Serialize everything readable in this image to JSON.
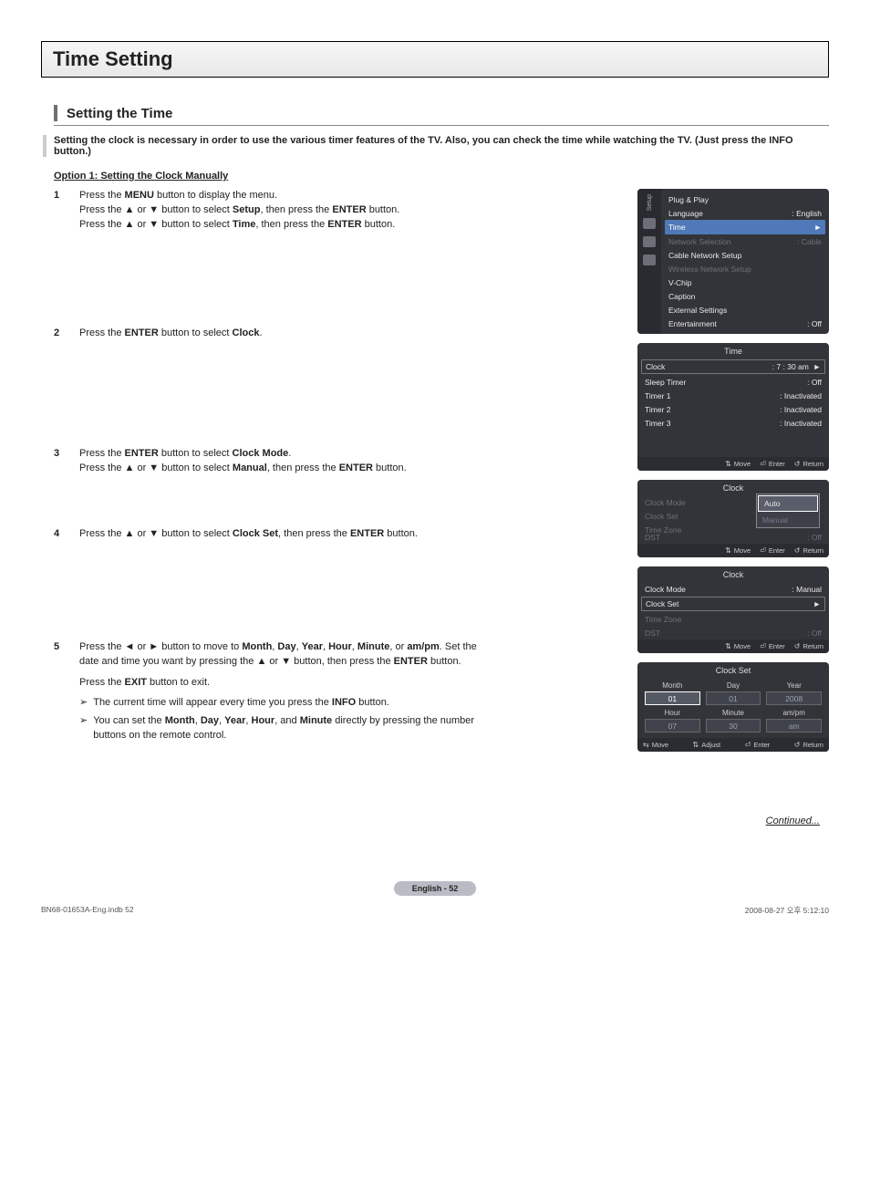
{
  "page": {
    "title": "Time Setting",
    "section_heading": "Setting the Time",
    "intro": "Setting the clock is necessary in order to use the various timer features of the TV. Also, you can check the time while watching the TV. (Just press the INFO button.)",
    "option_title": "Option 1: Setting the Clock Manually",
    "continued": "Continued...",
    "page_badge": "English - 52",
    "footer_left": "BN68-01653A-Eng.indb   52",
    "footer_right": "2008-08-27   오후 5:12:10"
  },
  "steps": {
    "s1": {
      "num": "1",
      "l1a": "Press the ",
      "l1b": "MENU",
      "l1c": " button to display the menu.",
      "l2a": "Press the ▲ or ▼ button to select ",
      "l2b": "Setup",
      "l2c": ", then press the ",
      "l2d": "ENTER",
      "l2e": " button.",
      "l3a": "Press the ▲ or ▼ button to select ",
      "l3b": "Time",
      "l3c": ", then press the ",
      "l3d": "ENTER",
      "l3e": " button."
    },
    "s2": {
      "num": "2",
      "l1a": "Press the ",
      "l1b": "ENTER",
      "l1c": " button to select ",
      "l1d": "Clock",
      "l1e": "."
    },
    "s3": {
      "num": "3",
      "l1a": "Press the ",
      "l1b": "ENTER",
      "l1c": " button to select ",
      "l1d": "Clock Mode",
      "l1e": ".",
      "l2a": "Press the ▲ or ▼ button to select ",
      "l2b": "Manual",
      "l2c": ", then press the ",
      "l2d": "ENTER",
      "l2e": " button."
    },
    "s4": {
      "num": "4",
      "l1a": "Press the ▲ or ▼ button to select ",
      "l1b": "Clock Set",
      "l1c": ", then press the ",
      "l1d": "ENTER",
      "l1e": " button."
    },
    "s5": {
      "num": "5",
      "l1a": "Press the ◄ or ► button to move to ",
      "l1b": "Month",
      "l1c": ", ",
      "l1d": "Day",
      "l1e": ", ",
      "l1f": "Year",
      "l1g": ", ",
      "l1h": "Hour",
      "l1i": ", ",
      "l1j": "Minute",
      "l1k": ", or ",
      "l1l": "am/pm",
      "l1m": ". Set the date and time you want by pressing the ▲ or ▼ button, then press the ",
      "l1n": "ENTER",
      "l1o": " button.",
      "l2a": "Press the ",
      "l2b": "EXIT",
      "l2c": " button to exit.",
      "n1a": "The current time will appear every time you press the ",
      "n1b": "INFO",
      "n1c": " button.",
      "n2a": "You can set the ",
      "n2b": "Month",
      "n2c": ", ",
      "n2d": "Day",
      "n2e": ", ",
      "n2f": "Year",
      "n2g": ", ",
      "n2h": "Hour",
      "n2i": ", and ",
      "n2j": "Minute",
      "n2k": " directly by pressing the number buttons on the remote control."
    }
  },
  "osd": {
    "colors": {
      "panel_bg": "#333439",
      "text": "#e8e8e8",
      "dim": "#6e707a",
      "highlight_bg": "#4f79b8",
      "footer_bg": "#2b2c31"
    },
    "setup": {
      "side_label": "Setup",
      "items": [
        {
          "label": "Plug & Play",
          "value": "",
          "dim": false
        },
        {
          "label": "Language",
          "value": ": English",
          "dim": false
        },
        {
          "label": "Time",
          "value": "►",
          "selected": true
        },
        {
          "label": "Network Selection",
          "value": ": Cable",
          "dim": true
        },
        {
          "label": "Cable Network Setup",
          "value": "",
          "dim": false
        },
        {
          "label": "Wireless Network Setup",
          "value": "",
          "dim": true
        },
        {
          "label": "V-Chip",
          "value": "",
          "dim": false
        },
        {
          "label": "Caption",
          "value": "",
          "dim": false
        },
        {
          "label": "External Settings",
          "value": "",
          "dim": false
        },
        {
          "label": "Entertainment",
          "value": ": Off",
          "dim": false
        }
      ]
    },
    "time_menu": {
      "title": "Time",
      "rows": [
        {
          "label": "Clock",
          "value": ":  7 : 30 am",
          "boxed": true,
          "arrow": "►"
        },
        {
          "label": "Sleep Timer",
          "value": ": Off"
        },
        {
          "label": "Timer 1",
          "value": ": Inactivated"
        },
        {
          "label": "Timer 2",
          "value": ": Inactivated"
        },
        {
          "label": "Timer 3",
          "value": ": Inactivated"
        }
      ],
      "footer": {
        "move": "Move",
        "enter": "Enter",
        "return": "Return"
      }
    },
    "clock_menu_popup": {
      "title": "Clock",
      "rows": [
        {
          "label": "Clock Mode",
          "value": "",
          "dim": true
        },
        {
          "label": "Clock Set",
          "value": "",
          "dim": true
        },
        {
          "label": "Time Zone",
          "value": "",
          "dim": true
        },
        {
          "label": "DST",
          "value": ": Off",
          "dim": true
        }
      ],
      "popup_auto": "Auto",
      "popup_manual": "Manual",
      "footer": {
        "move": "Move",
        "enter": "Enter",
        "return": "Return"
      }
    },
    "clock_menu_manual": {
      "title": "Clock",
      "rows": [
        {
          "label": "Clock Mode",
          "value": ": Manual"
        },
        {
          "label": "Clock Set",
          "value": "►",
          "boxed": true
        },
        {
          "label": "Time Zone",
          "value": "",
          "dim": true
        },
        {
          "label": "DST",
          "value": ": Off",
          "dim": true
        }
      ],
      "footer": {
        "move": "Move",
        "enter": "Enter",
        "return": "Return"
      }
    },
    "clock_set": {
      "title": "Clock Set",
      "cells": [
        {
          "lbl": "Month",
          "val": "01",
          "active": true
        },
        {
          "lbl": "Day",
          "val": "01"
        },
        {
          "lbl": "Year",
          "val": "2008"
        },
        {
          "lbl": "Hour",
          "val": "07"
        },
        {
          "lbl": "Minute",
          "val": "30"
        },
        {
          "lbl": "am/pm",
          "val": "am"
        }
      ],
      "footer": {
        "move": "Move",
        "adjust": "Adjust",
        "enter": "Enter",
        "return": "Return"
      }
    }
  }
}
